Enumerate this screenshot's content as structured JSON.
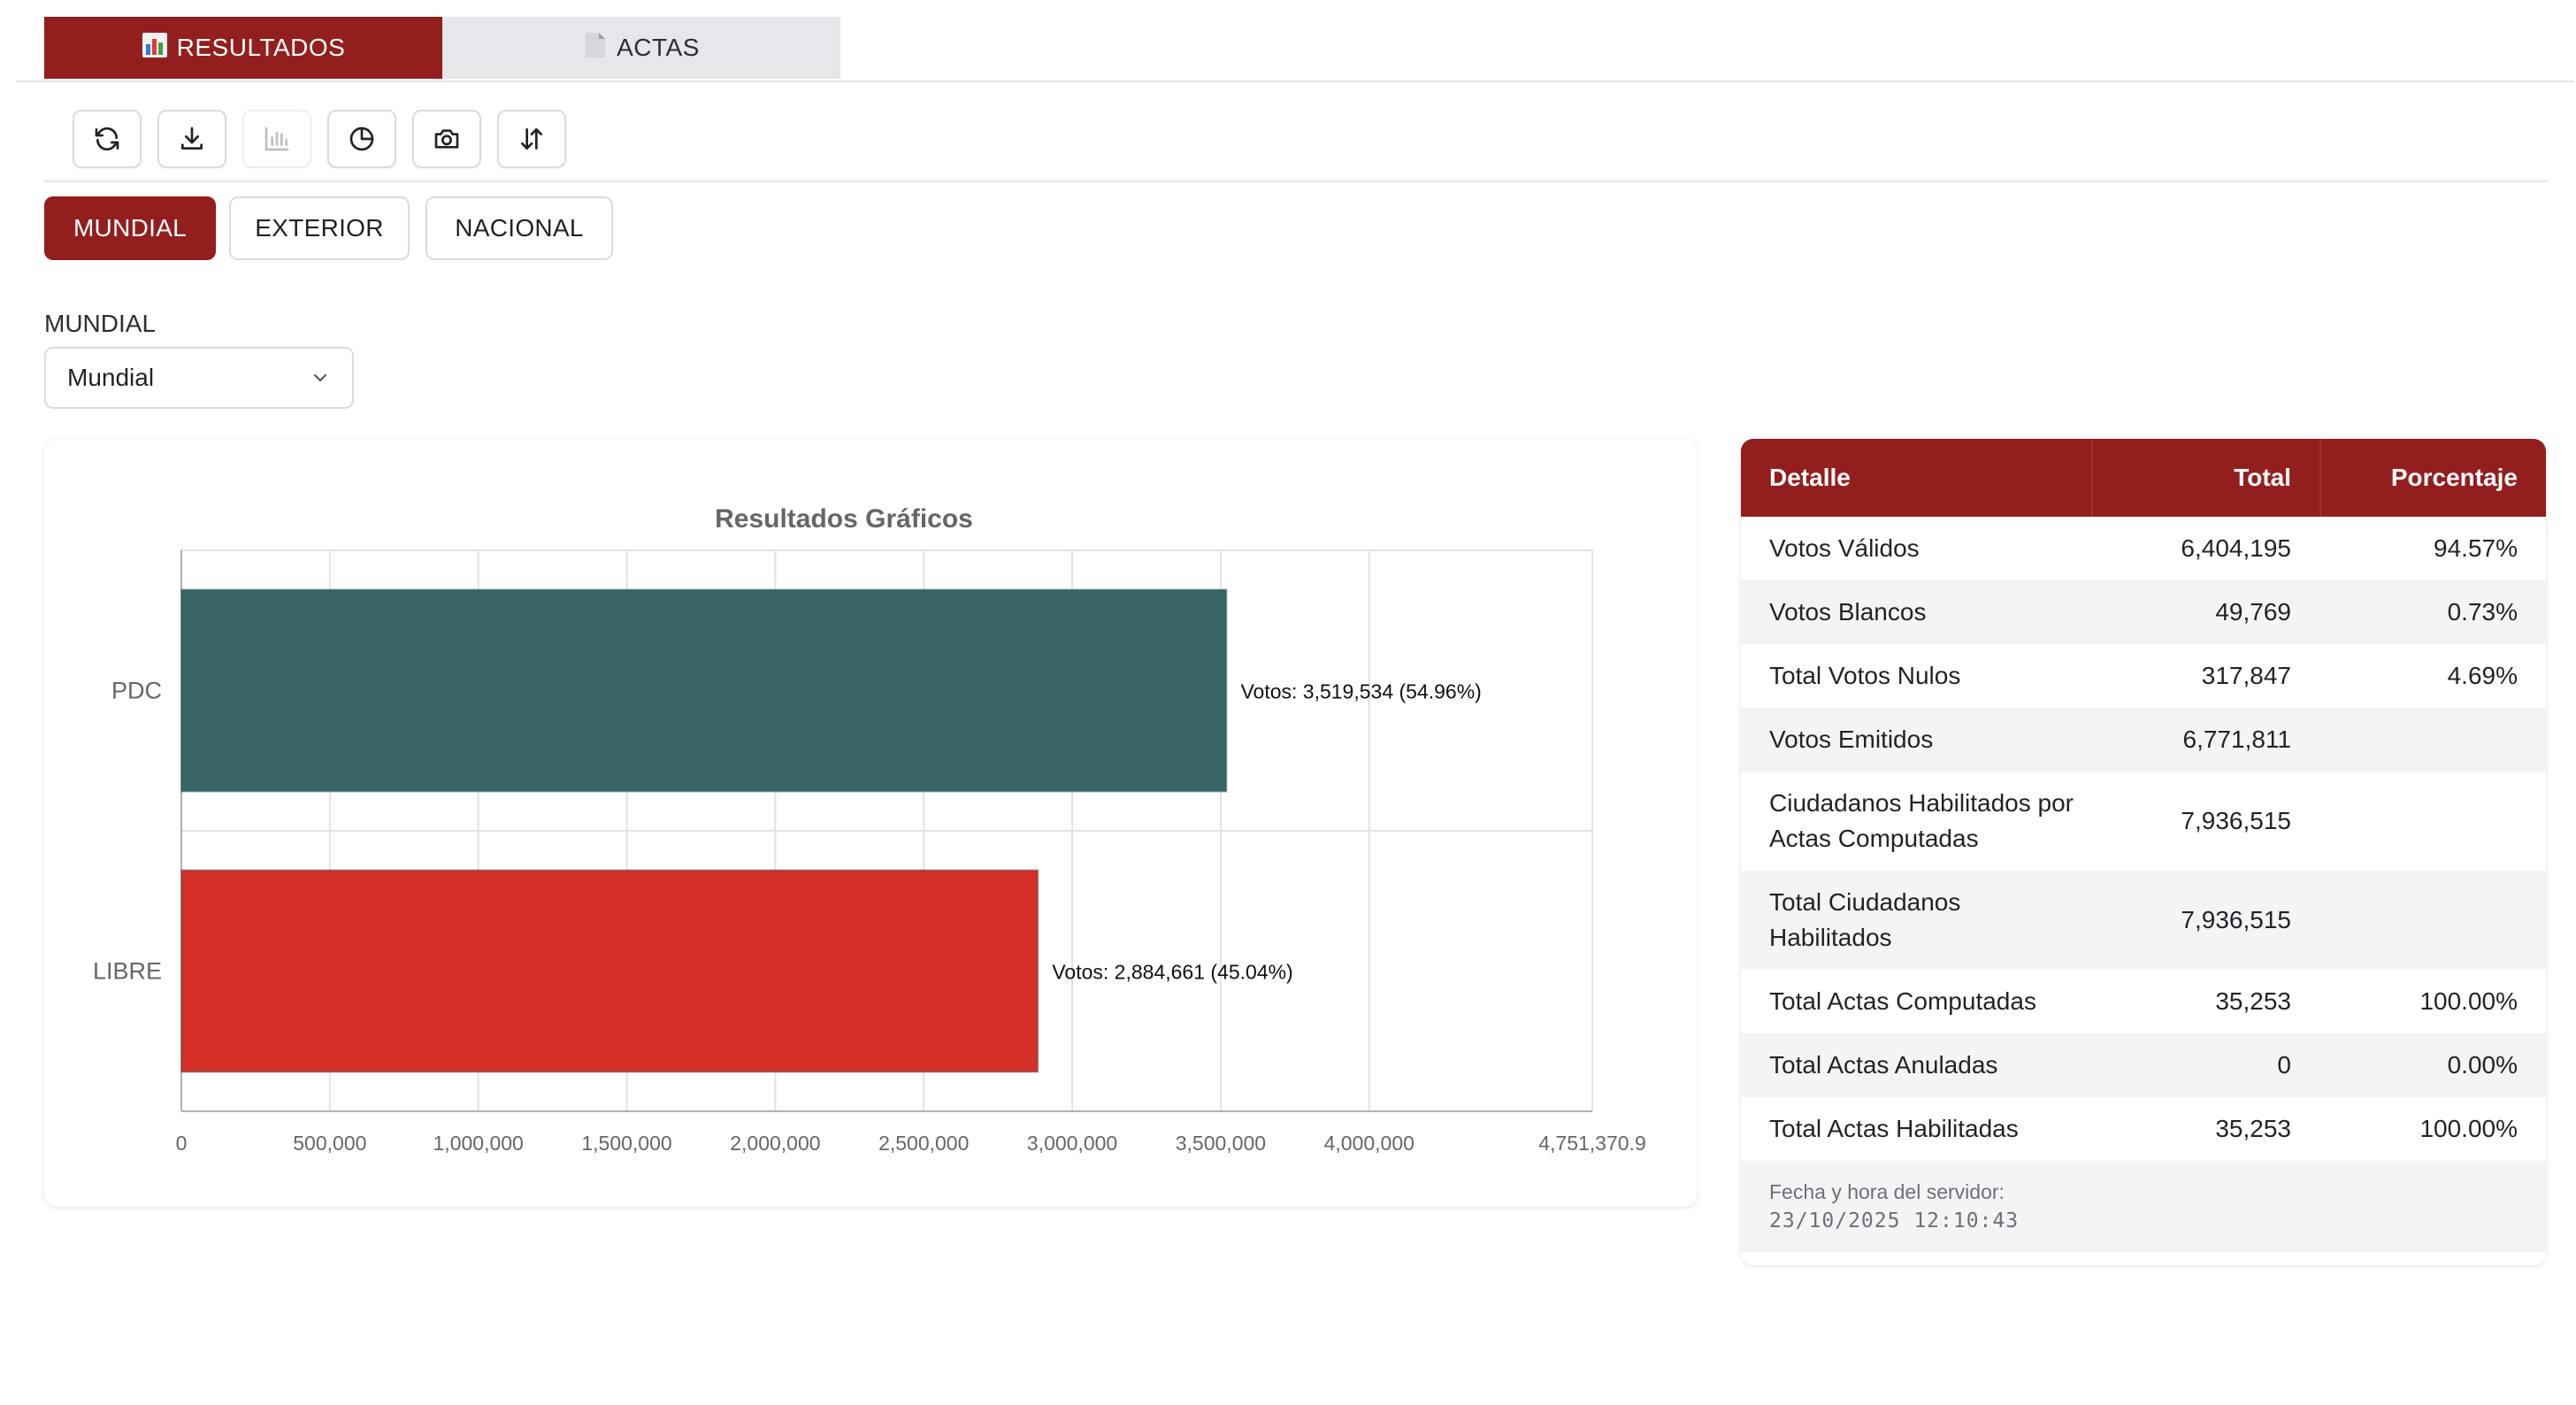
{
  "tabs": [
    {
      "label": "RESULTADOS",
      "icon": "bar-chart-emoji-icon",
      "active": true
    },
    {
      "label": "ACTAS",
      "icon": "document-emoji-icon",
      "active": false
    }
  ],
  "toolbar": {
    "buttons": [
      {
        "name": "refresh-icon"
      },
      {
        "name": "download-icon"
      },
      {
        "name": "bar-chart-icon",
        "disabled": true
      },
      {
        "name": "pie-chart-icon"
      },
      {
        "name": "camera-icon"
      },
      {
        "name": "sort-icon"
      }
    ]
  },
  "scope": {
    "buttons": [
      "MUNDIAL",
      "EXTERIOR",
      "NACIONAL"
    ],
    "active": "MUNDIAL"
  },
  "filter": {
    "label": "MUNDIAL",
    "selected": "Mundial"
  },
  "chart_data": {
    "type": "bar",
    "orientation": "horizontal",
    "title": "Resultados Gráficos",
    "categories": [
      "PDC",
      "LIBRE"
    ],
    "values": [
      3519534,
      2884661
    ],
    "data_labels": [
      "Votos: 3,519,534 (54.96%)",
      "Votos: 2,884,661 (45.04%)"
    ],
    "colors": [
      "#376466",
      "#d22f27"
    ],
    "xlim": [
      0,
      4751370.9
    ],
    "xticks": [
      0,
      500000,
      1000000,
      1500000,
      2000000,
      2500000,
      3000000,
      3500000,
      4000000,
      4751370.9
    ],
    "xtick_labels": [
      "0",
      "500,000",
      "1,000,000",
      "1,500,000",
      "2,000,000",
      "2,500,000",
      "3,000,000",
      "3,500,000",
      "4,000,000",
      "4,751,370.9"
    ],
    "grid": true
  },
  "table": {
    "headers": [
      "Detalle",
      "Total",
      "Porcentaje"
    ],
    "rows": [
      {
        "detalle": "Votos Válidos",
        "total": "6,404,195",
        "pct": "94.57%"
      },
      {
        "detalle": "Votos Blancos",
        "total": "49,769",
        "pct": "0.73%"
      },
      {
        "detalle": "Total Votos Nulos",
        "total": "317,847",
        "pct": "4.69%"
      },
      {
        "detalle": "Votos Emitidos",
        "total": "6,771,811",
        "pct": ""
      },
      {
        "detalle": "Ciudadanos Habilitados por Actas Computadas",
        "total": "7,936,515",
        "pct": ""
      },
      {
        "detalle": "Total Ciudadanos Habilitados",
        "total": "7,936,515",
        "pct": ""
      },
      {
        "detalle": "Total Actas Computadas",
        "total": "35,253",
        "pct": "100.00%"
      },
      {
        "detalle": "Total Actas Anuladas",
        "total": "0",
        "pct": "0.00%"
      },
      {
        "detalle": "Total Actas Habilitadas",
        "total": "35,253",
        "pct": "100.00%"
      }
    ],
    "footer_label": "Fecha y hora del servidor:",
    "footer_timestamp": "23/10/2025 12:10:43"
  },
  "colors": {
    "brand": "#931e1e",
    "pdc": "#376466",
    "libre": "#d22f27"
  }
}
